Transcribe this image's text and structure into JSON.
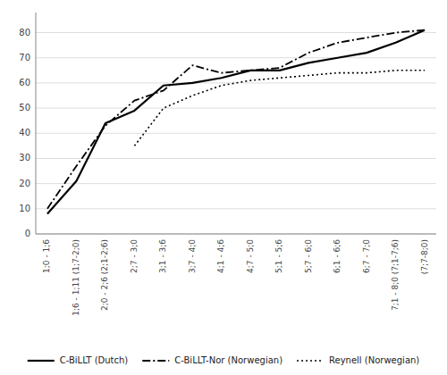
{
  "chart_data": {
    "type": "line",
    "categories": [
      "1;0 - 1;6",
      "1;6 - 1;11 (1;7-2;0)",
      "2;0 - 2;6 (2;1-2;6)",
      "2;7 - 3;0",
      "3;1 - 3;6",
      "3;7 - 4;0",
      "4;1 - 4;6",
      "4;7 - 5;0",
      "5;1 - 5;6",
      "5;7 - 6;0",
      "6;1 - 6;6",
      "6;7 - 7;0",
      "7;1 - 8;0 (7;1-7;6)",
      "(7;7-8;0)"
    ],
    "series": [
      {
        "name": "C-BiLLT (Dutch)",
        "color": "#000000",
        "line_style": "solid",
        "values": [
          8,
          21,
          44,
          49,
          59,
          60,
          62,
          65,
          65,
          68,
          70,
          72,
          76,
          81
        ]
      },
      {
        "name": "C-BiLLT-Nor (Norwegian)",
        "color": "#000000",
        "line_style": "dashdot",
        "values": [
          10,
          27,
          43,
          53,
          57,
          67,
          64,
          65,
          66,
          72,
          76,
          78,
          80,
          81
        ]
      },
      {
        "name": "Reynell (Norwegian)",
        "color": "#000000",
        "line_style": "dotted",
        "values": [
          null,
          null,
          null,
          35,
          50,
          55,
          59,
          61,
          62,
          63,
          64,
          64,
          65,
          65
        ]
      }
    ],
    "ylim": [
      0,
      88
    ],
    "yticks": [
      0,
      10,
      20,
      30,
      40,
      50,
      60,
      70,
      80
    ],
    "grid": true,
    "legend": "bottom"
  }
}
